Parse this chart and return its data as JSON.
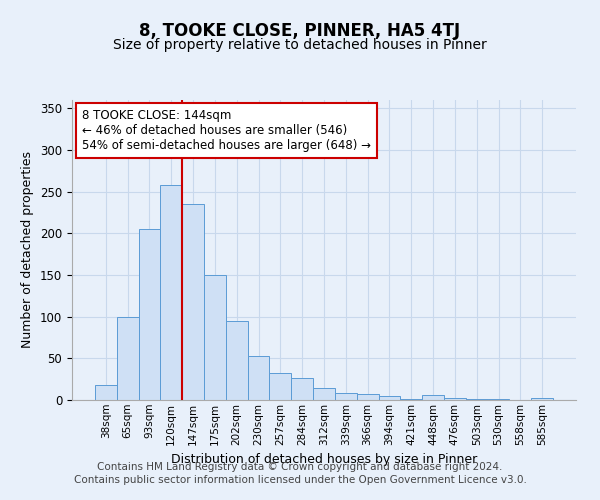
{
  "title": "8, TOOKE CLOSE, PINNER, HA5 4TJ",
  "subtitle": "Size of property relative to detached houses in Pinner",
  "xlabel": "Distribution of detached houses by size in Pinner",
  "ylabel": "Number of detached properties",
  "bar_labels": [
    "38sqm",
    "65sqm",
    "93sqm",
    "120sqm",
    "147sqm",
    "175sqm",
    "202sqm",
    "230sqm",
    "257sqm",
    "284sqm",
    "312sqm",
    "339sqm",
    "366sqm",
    "394sqm",
    "421sqm",
    "448sqm",
    "476sqm",
    "503sqm",
    "530sqm",
    "558sqm",
    "585sqm"
  ],
  "bar_values": [
    18,
    100,
    205,
    258,
    235,
    150,
    95,
    53,
    33,
    26,
    15,
    9,
    7,
    5,
    1,
    6,
    2,
    1,
    1,
    0,
    2
  ],
  "bar_color": "#cfe0f5",
  "bar_edge_color": "#5b9bd5",
  "annotation_box_text": "8 TOOKE CLOSE: 144sqm\n← 46% of detached houses are smaller (546)\n54% of semi-detached houses are larger (648) →",
  "annotation_box_color": "white",
  "annotation_box_edge_color": "#cc0000",
  "annotation_line_color": "#cc0000",
  "vline_x": 3.5,
  "ylim": [
    0,
    360
  ],
  "yticks": [
    0,
    50,
    100,
    150,
    200,
    250,
    300,
    350
  ],
  "footer1": "Contains HM Land Registry data © Crown copyright and database right 2024.",
  "footer2": "Contains public sector information licensed under the Open Government Licence v3.0.",
  "bg_color": "#e8f0fa",
  "title_fontsize": 12,
  "subtitle_fontsize": 10,
  "footer_fontsize": 7.5
}
